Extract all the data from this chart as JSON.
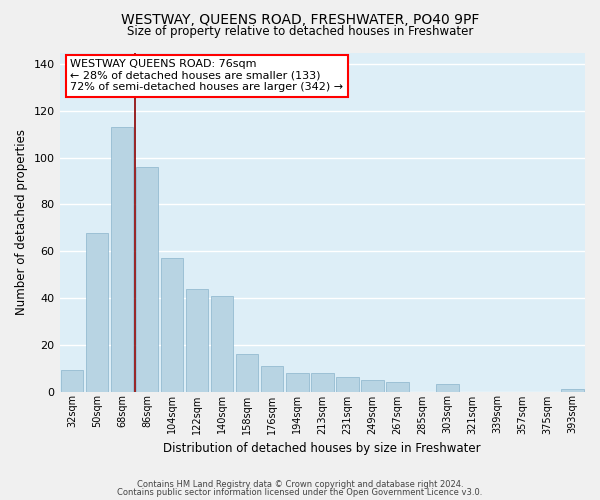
{
  "title": "WESTWAY, QUEENS ROAD, FRESHWATER, PO40 9PF",
  "subtitle": "Size of property relative to detached houses in Freshwater",
  "xlabel": "Distribution of detached houses by size in Freshwater",
  "ylabel": "Number of detached properties",
  "bar_labels": [
    "32sqm",
    "50sqm",
    "68sqm",
    "86sqm",
    "104sqm",
    "122sqm",
    "140sqm",
    "158sqm",
    "176sqm",
    "194sqm",
    "213sqm",
    "231sqm",
    "249sqm",
    "267sqm",
    "285sqm",
    "303sqm",
    "321sqm",
    "339sqm",
    "357sqm",
    "375sqm",
    "393sqm"
  ],
  "bar_values": [
    9,
    68,
    113,
    96,
    57,
    44,
    41,
    16,
    11,
    8,
    8,
    6,
    5,
    4,
    0,
    3,
    0,
    0,
    0,
    0,
    1
  ],
  "bar_color": "#b8d4e3",
  "bar_edge_color": "#8ab4cc",
  "ylim": [
    0,
    145
  ],
  "yticks": [
    0,
    20,
    40,
    60,
    80,
    100,
    120,
    140
  ],
  "red_line_x": 2.5,
  "annotation_title": "WESTWAY QUEENS ROAD: 76sqm",
  "annotation_line1": "← 28% of detached houses are smaller (133)",
  "annotation_line2": "72% of semi-detached houses are larger (342) →",
  "footnote1": "Contains HM Land Registry data © Crown copyright and database right 2024.",
  "footnote2": "Contains public sector information licensed under the Open Government Licence v3.0.",
  "background_color": "#f0f0f0",
  "grid_color": "#d8e8f0",
  "plot_bg_color": "#ddeef7"
}
